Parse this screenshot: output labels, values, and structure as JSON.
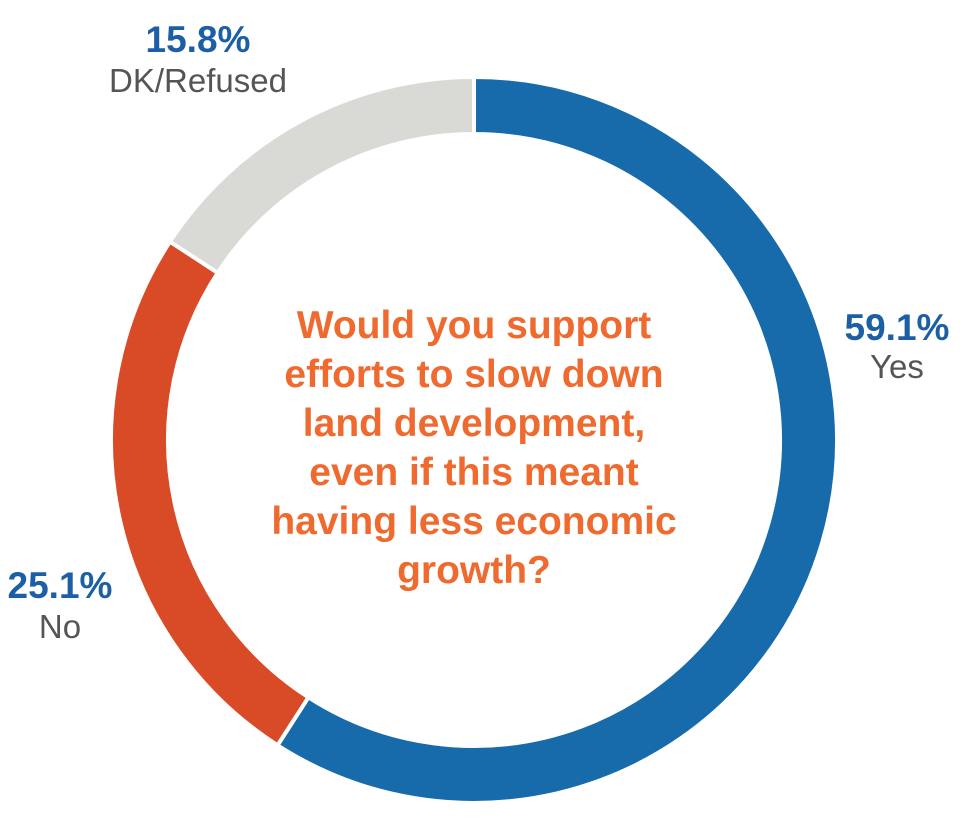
{
  "chart_data": {
    "type": "pie",
    "variant": "donut",
    "start_angle": "12 o'clock",
    "direction": "clockwise",
    "center_text": [
      "Would you support",
      "efforts to slow down",
      "land development,",
      "even if this meant",
      "having less economic",
      "growth?"
    ],
    "slices": [
      {
        "label": "Yes",
        "value": 59.1,
        "value_label": "59.1%",
        "color": "#176bab"
      },
      {
        "label": "No",
        "value": 25.1,
        "value_label": "25.1%",
        "color": "#d94a27"
      },
      {
        "label": "DK/Refused",
        "value": 15.8,
        "value_label": "15.8%",
        "color": "#d9dad6"
      }
    ],
    "colors": {
      "percent_text": "#1c5fa4",
      "category_text": "#555555",
      "question_text": "#ee6a2f",
      "separator": "#ffffff"
    }
  }
}
